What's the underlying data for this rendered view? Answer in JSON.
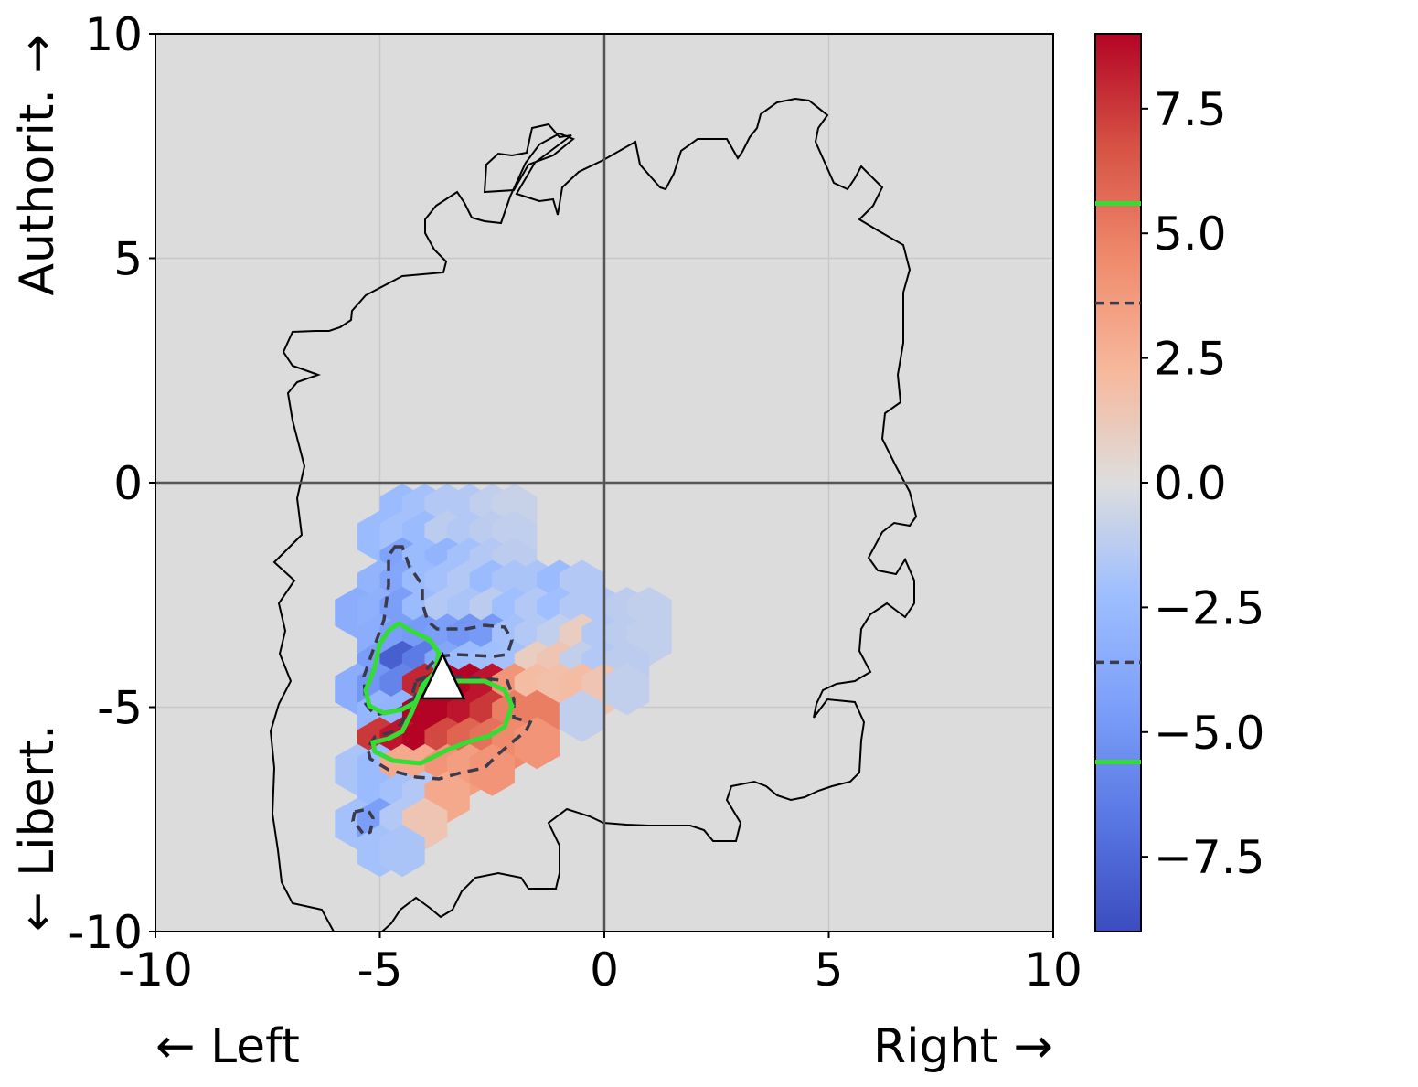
{
  "chart_data": {
    "type": "heatmap",
    "subtype": "hexbin",
    "xlim": [
      -10,
      10
    ],
    "ylim": [
      -10,
      10
    ],
    "xticks": [
      -10,
      -5,
      0,
      5,
      10
    ],
    "yticks": [
      -10,
      -5,
      0,
      5,
      10
    ],
    "xtick_labels": [
      "-10",
      "-5",
      "0",
      "5",
      "10"
    ],
    "ytick_labels": [
      "-10",
      "-5",
      "0",
      "5",
      "10"
    ],
    "x_label_left": "← Left",
    "x_label_right": "Right →",
    "y_label_top": "Authorit. →",
    "y_label_bottom": "← Libert.",
    "grid": true,
    "background": "#dcdcdc",
    "colormap": "coolwarm",
    "colorbar": {
      "range": [
        -9,
        9
      ],
      "ticks": [
        -7.5,
        -5.0,
        -2.5,
        0.0,
        2.5,
        5.0,
        7.5
      ],
      "tick_labels": [
        "−7.5",
        "−5.0",
        "−2.5",
        "0.0",
        "2.5",
        "5.0",
        "7.5"
      ],
      "contour_levels": [
        {
          "value": 5.6,
          "style": "solid",
          "color": "#33dd33"
        },
        {
          "value": 3.6,
          "style": "dashed",
          "color": "#3a3a4a"
        },
        {
          "value": -3.6,
          "style": "dashed",
          "color": "#3a3a4a"
        },
        {
          "value": -5.6,
          "style": "solid",
          "color": "#33dd33"
        }
      ]
    },
    "marker": {
      "x": -3.6,
      "y": -4.6,
      "shape": "triangle",
      "color": "#ffffff"
    },
    "hexbins": [
      {
        "x": -4.5,
        "y": -0.6,
        "v": -2.5
      },
      {
        "x": -4.0,
        "y": -0.6,
        "v": -2.0
      },
      {
        "x": -3.5,
        "y": -0.6,
        "v": -1.5
      },
      {
        "x": -3.0,
        "y": -0.6,
        "v": -1.5
      },
      {
        "x": -2.5,
        "y": -0.6,
        "v": -1.0
      },
      {
        "x": -2.0,
        "y": -0.6,
        "v": -0.8
      },
      {
        "x": -5.0,
        "y": -1.2,
        "v": -2.5
      },
      {
        "x": -4.5,
        "y": -1.2,
        "v": -2.0
      },
      {
        "x": -4.0,
        "y": -1.2,
        "v": -2.5
      },
      {
        "x": -3.5,
        "y": -1.2,
        "v": -1.2
      },
      {
        "x": -3.0,
        "y": -1.2,
        "v": -1.5
      },
      {
        "x": -2.5,
        "y": -1.2,
        "v": -1.2
      },
      {
        "x": -2.0,
        "y": -1.2,
        "v": -1.0
      },
      {
        "x": -4.5,
        "y": -1.8,
        "v": -4.2
      },
      {
        "x": -4.0,
        "y": -1.8,
        "v": -2.5
      },
      {
        "x": -3.5,
        "y": -1.8,
        "v": -3.0
      },
      {
        "x": -3.0,
        "y": -1.8,
        "v": -2.0
      },
      {
        "x": -2.5,
        "y": -1.8,
        "v": -1.5
      },
      {
        "x": -2.0,
        "y": -1.8,
        "v": -1.2
      },
      {
        "x": -5.0,
        "y": -2.3,
        "v": -3.0
      },
      {
        "x": -4.5,
        "y": -2.3,
        "v": -4.0
      },
      {
        "x": -4.0,
        "y": -2.3,
        "v": -2.5
      },
      {
        "x": -3.5,
        "y": -2.3,
        "v": -2.0
      },
      {
        "x": -3.0,
        "y": -2.3,
        "v": -1.5
      },
      {
        "x": -2.5,
        "y": -2.3,
        "v": -2.5
      },
      {
        "x": -2.0,
        "y": -2.3,
        "v": -1.8
      },
      {
        "x": -1.5,
        "y": -2.3,
        "v": -1.8
      },
      {
        "x": -1.0,
        "y": -2.3,
        "v": -2.5
      },
      {
        "x": -0.5,
        "y": -2.3,
        "v": -1.5
      },
      {
        "x": -5.5,
        "y": -2.9,
        "v": -3.5
      },
      {
        "x": -5.0,
        "y": -2.9,
        "v": -3.2
      },
      {
        "x": -4.5,
        "y": -2.9,
        "v": -4.5
      },
      {
        "x": -4.0,
        "y": -2.9,
        "v": -2.5
      },
      {
        "x": -3.5,
        "y": -2.9,
        "v": -1.5
      },
      {
        "x": -3.0,
        "y": -2.9,
        "v": -1.8
      },
      {
        "x": -2.5,
        "y": -2.9,
        "v": -1.2
      },
      {
        "x": -2.0,
        "y": -2.9,
        "v": -2.2
      },
      {
        "x": -1.5,
        "y": -2.9,
        "v": -1.5
      },
      {
        "x": -1.0,
        "y": -2.9,
        "v": -2.2
      },
      {
        "x": -0.5,
        "y": -2.9,
        "v": -1.5
      },
      {
        "x": 0.0,
        "y": -2.9,
        "v": -1.5
      },
      {
        "x": 0.5,
        "y": -2.9,
        "v": -1.2
      },
      {
        "x": 1.0,
        "y": -2.9,
        "v": -1.0
      },
      {
        "x": -5.0,
        "y": -3.5,
        "v": -3.5
      },
      {
        "x": -4.5,
        "y": -3.5,
        "v": -4.5
      },
      {
        "x": -4.0,
        "y": -3.5,
        "v": -4.8
      },
      {
        "x": -3.5,
        "y": -3.5,
        "v": -4.5
      },
      {
        "x": -3.0,
        "y": -3.5,
        "v": -5.0
      },
      {
        "x": -2.5,
        "y": -3.5,
        "v": -4.8
      },
      {
        "x": -2.0,
        "y": -3.5,
        "v": -2.0
      },
      {
        "x": -1.5,
        "y": -3.5,
        "v": -1.5
      },
      {
        "x": -1.0,
        "y": -3.5,
        "v": -1.0
      },
      {
        "x": -0.5,
        "y": -3.5,
        "v": 1.0
      },
      {
        "x": 0.0,
        "y": -3.5,
        "v": -1.5
      },
      {
        "x": 0.5,
        "y": -3.5,
        "v": -1.2
      },
      {
        "x": 1.0,
        "y": -3.5,
        "v": -1.0
      },
      {
        "x": -5.0,
        "y": -4.1,
        "v": -4.5
      },
      {
        "x": -4.5,
        "y": -4.1,
        "v": -8.0
      },
      {
        "x": -4.0,
        "y": -4.1,
        "v": -6.5
      },
      {
        "x": -3.5,
        "y": -4.1,
        "v": -4.0
      },
      {
        "x": -3.0,
        "y": -4.1,
        "v": -2.5
      },
      {
        "x": -2.5,
        "y": -4.1,
        "v": -2.2
      },
      {
        "x": -2.0,
        "y": -4.1,
        "v": -2.0
      },
      {
        "x": -1.5,
        "y": -4.1,
        "v": 1.0
      },
      {
        "x": -1.0,
        "y": -4.1,
        "v": 1.5
      },
      {
        "x": -0.5,
        "y": -4.1,
        "v": -1.0
      },
      {
        "x": 0.0,
        "y": -4.1,
        "v": -1.5
      },
      {
        "x": 0.5,
        "y": -4.1,
        "v": -1.2
      },
      {
        "x": -5.5,
        "y": -4.6,
        "v": -3.5
      },
      {
        "x": -5.0,
        "y": -4.6,
        "v": -5.0
      },
      {
        "x": -4.5,
        "y": -4.6,
        "v": -6.0
      },
      {
        "x": -4.0,
        "y": -4.6,
        "v": 8.0
      },
      {
        "x": -3.5,
        "y": -4.6,
        "v": 9.0
      },
      {
        "x": -3.0,
        "y": -4.6,
        "v": 9.0
      },
      {
        "x": -2.5,
        "y": -4.6,
        "v": 8.5
      },
      {
        "x": -2.0,
        "y": -4.6,
        "v": 4.0
      },
      {
        "x": -1.5,
        "y": -4.6,
        "v": 2.0
      },
      {
        "x": -1.0,
        "y": -4.6,
        "v": 1.8
      },
      {
        "x": -0.5,
        "y": -4.6,
        "v": 2.0
      },
      {
        "x": 0.0,
        "y": -4.6,
        "v": 1.5
      },
      {
        "x": 0.5,
        "y": -4.6,
        "v": -1.0
      },
      {
        "x": -5.0,
        "y": -5.2,
        "v": -2.8
      },
      {
        "x": -4.5,
        "y": -5.2,
        "v": -3.0
      },
      {
        "x": -4.0,
        "y": -5.2,
        "v": 9.0
      },
      {
        "x": -3.5,
        "y": -5.2,
        "v": 9.0
      },
      {
        "x": -3.0,
        "y": -5.2,
        "v": 8.5
      },
      {
        "x": -2.5,
        "y": -5.2,
        "v": 7.5
      },
      {
        "x": -2.0,
        "y": -5.2,
        "v": 5.0
      },
      {
        "x": -1.5,
        "y": -5.2,
        "v": 5.0
      },
      {
        "x": -0.5,
        "y": -5.2,
        "v": -1.0
      },
      {
        "x": -5.0,
        "y": -5.8,
        "v": 7.5
      },
      {
        "x": -4.5,
        "y": -5.8,
        "v": 8.5
      },
      {
        "x": -4.0,
        "y": -5.8,
        "v": 9.0
      },
      {
        "x": -3.5,
        "y": -5.8,
        "v": 7.0
      },
      {
        "x": -3.0,
        "y": -5.8,
        "v": 6.0
      },
      {
        "x": -2.5,
        "y": -5.8,
        "v": 5.5
      },
      {
        "x": -2.0,
        "y": -5.8,
        "v": 4.5
      },
      {
        "x": -1.5,
        "y": -5.8,
        "v": 4.0
      },
      {
        "x": -5.5,
        "y": -6.4,
        "v": -1.8
      },
      {
        "x": -5.0,
        "y": -6.4,
        "v": -2.5
      },
      {
        "x": -4.5,
        "y": -6.4,
        "v": 3.0
      },
      {
        "x": -4.0,
        "y": -6.4,
        "v": 3.0
      },
      {
        "x": -3.5,
        "y": -6.4,
        "v": 4.0
      },
      {
        "x": -3.0,
        "y": -6.4,
        "v": 3.5
      },
      {
        "x": -2.5,
        "y": -6.4,
        "v": 4.0
      },
      {
        "x": -5.0,
        "y": -7.0,
        "v": -2.5
      },
      {
        "x": -4.5,
        "y": -7.0,
        "v": -2.0
      },
      {
        "x": -4.0,
        "y": -7.0,
        "v": -1.5
      },
      {
        "x": -3.5,
        "y": -7.0,
        "v": 3.0
      },
      {
        "x": -5.5,
        "y": -7.6,
        "v": -2.0
      },
      {
        "x": -5.0,
        "y": -7.6,
        "v": -4.5
      },
      {
        "x": -4.5,
        "y": -7.6,
        "v": -1.5
      },
      {
        "x": -4.0,
        "y": -7.6,
        "v": 1.5
      },
      {
        "x": -5.0,
        "y": -8.2,
        "v": -2.0
      },
      {
        "x": -4.5,
        "y": -8.2,
        "v": -1.8
      }
    ]
  }
}
